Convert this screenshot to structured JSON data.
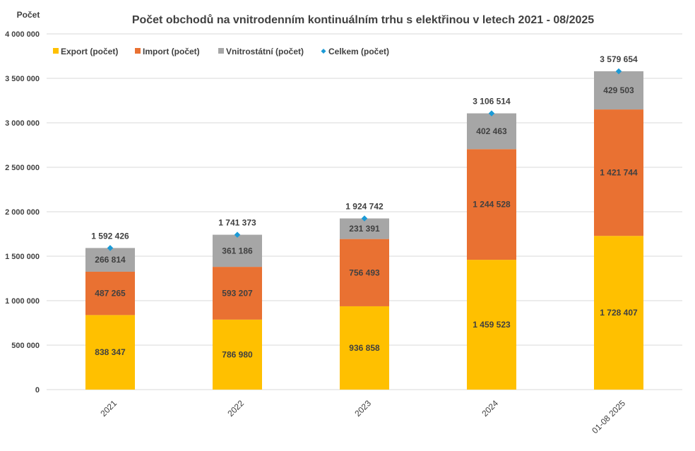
{
  "chart_data": {
    "type": "bar",
    "stacked": true,
    "title": "Počet obchodů na vnitrodenním kontinuálním trhu s elektřinou v letech 2021 - 08/2025",
    "ylabel": "Počet",
    "xlabel": "",
    "ylim": [
      0,
      4000000
    ],
    "yticks": [
      "0",
      "500 000",
      "1 000 000",
      "1 500 000",
      "2 000 000",
      "2 500 000",
      "3 000 000",
      "3 500 000",
      "4 000 000"
    ],
    "grid": true,
    "legend_position": "top-left",
    "categories": [
      "2021",
      "2022",
      "2023",
      "2024",
      "01-08 2025"
    ],
    "series": [
      {
        "name": "Export (počet)",
        "color": "#FFC000",
        "values": [
          838347,
          786980,
          936858,
          1459523,
          1728407
        ],
        "labels": [
          "838 347",
          "786 980",
          "936 858",
          "1 459 523",
          "1 728 407"
        ]
      },
      {
        "name": "Import (počet)",
        "color": "#E97132",
        "values": [
          487265,
          593207,
          756493,
          1244528,
          1421744
        ],
        "labels": [
          "487 265",
          "593 207",
          "756 493",
          "1 244 528",
          "1 421 744"
        ]
      },
      {
        "name": "Vnitrostátní (počet)",
        "color": "#A6A6A6",
        "values": [
          266814,
          361186,
          231391,
          402463,
          429503
        ],
        "labels": [
          "266 814",
          "361 186",
          "231 391",
          "402 463",
          "429 503"
        ]
      }
    ],
    "total": {
      "name": "Celkem (počet)",
      "color": "#1B9AD6",
      "values": [
        1592426,
        1741373,
        1924742,
        3106514,
        3579654
      ],
      "labels": [
        "1 592 426",
        "1 741 373",
        "1 924 742",
        "3 106 514",
        "3 579 654"
      ]
    }
  }
}
